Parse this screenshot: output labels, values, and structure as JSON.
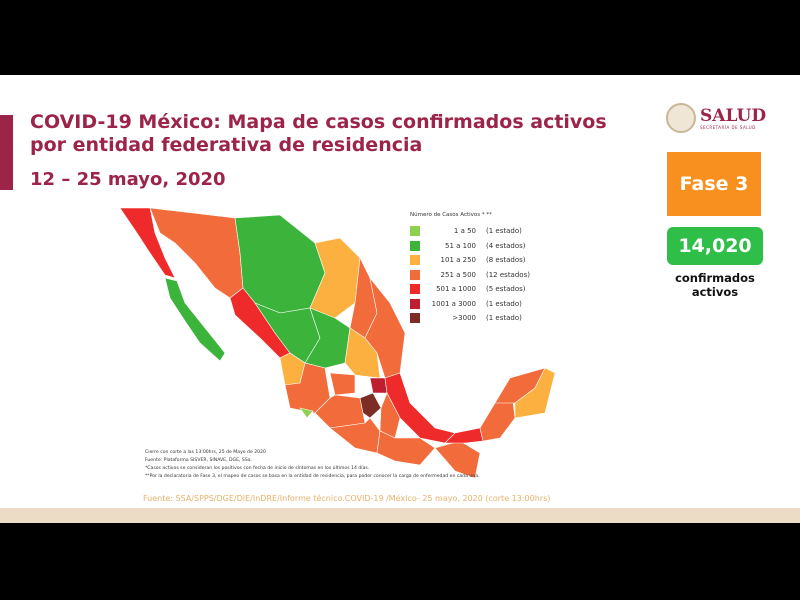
{
  "title": "COVID-19 México: Mapa de casos confirmados activos por entidad federativa de residencia",
  "date_range": "12 – 25 mayo, 2020",
  "logo": {
    "name": "SALUD",
    "subtitle": "SECRETARÍA DE SALUD"
  },
  "phase": "Fase 3",
  "active_count": "14,020",
  "active_label_1": "confirmados",
  "active_label_2": "activos",
  "legend": {
    "title": "Número de Casos Activos * **",
    "items": [
      {
        "range": "1 a 50",
        "states": "(1 estado)",
        "color": "#8fd14f"
      },
      {
        "range": "51 a 100",
        "states": "(4 estados)",
        "color": "#3cb43c"
      },
      {
        "range": "101 a 250",
        "states": "(8 estados)",
        "color": "#fbb040"
      },
      {
        "range": "251 a 500",
        "states": "(12 estados)",
        "color": "#f26b3a"
      },
      {
        "range": "501 a 1000",
        "states": "(5 estados)",
        "color": "#ee2a2a"
      },
      {
        "range": "1001 a 3000",
        "states": "(1 estado)",
        "color": "#be1e2d"
      },
      {
        "range": ">3000",
        "states": "(1 estado)",
        "color": "#7b2d26"
      }
    ]
  },
  "notes": [
    "Cierre con corte a las 13:00hrs, 25 de Mayo de 2020",
    "Fuente: Plataforma SISVER, SINAVE, DGE, SSa.",
    "*Casos activos se consideran los positivos con fecha de inicio de síntomas en los últimos 14 días.",
    "**Por la declaratoria de Fase 3, el mapeo de casos se basa en la entidad de residencia, para poder conocer la carga de enfermedad en cada una."
  ],
  "source": "Fuente: SSA/SPPS/DGE/DIE/InDRE/Informe técnico.COVID-19 /México- 25 mayo, 2020 (corte 13:00hrs)"
}
